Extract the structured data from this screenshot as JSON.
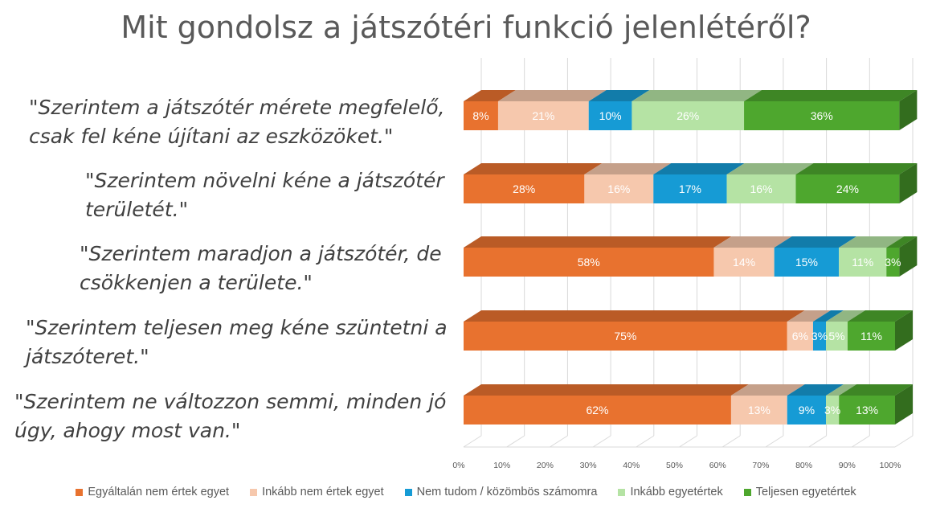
{
  "chart_data": {
    "type": "bar",
    "orientation": "horizontal",
    "stacked": true,
    "percent": true,
    "title": "Mit gondolsz a játszótéri funkció jelenlétéről?",
    "categories": [
      "\"Szerintem a játszótér mérete megfelelő, csak fel kéne újítani az eszközöket.\"",
      "\"Szerintem növelni kéne a játszótér területét.\"",
      "\"Szerintem maradjon a játszótér, de csökkenjen a területe.\"",
      "\"Szerintem teljesen meg kéne szüntetni a játszóteret.\"",
      "\"Szerintem ne változzon semmi, minden jó úgy, ahogy most van.\""
    ],
    "category_lines": [
      [
        "\"Szerintem a játszótér mérete megfelelő,",
        "csak fel kéne újítani az eszközöket.\""
      ],
      [
        "\"Szerintem növelni kéne a játszótér",
        "területét.\""
      ],
      [
        "\"Szerintem maradjon a játszótér, de",
        "csökkenjen a területe.\""
      ],
      [
        "\"Szerintem teljesen meg kéne szüntetni a",
        "játszóteret.\""
      ],
      [
        "\"Szerintem ne változzon semmi, minden jó",
        "úgy, ahogy most van.\""
      ]
    ],
    "series": [
      {
        "name": "Egyáltalán nem értek egyet",
        "color": "#E8722F",
        "text_color": "#ffffff",
        "values": [
          8,
          28,
          58,
          75,
          62
        ]
      },
      {
        "name": "Inkább nem értek egyet",
        "color": "#F6C8AD",
        "text_color": "#ffffff",
        "values": [
          21,
          16,
          14,
          6,
          13
        ]
      },
      {
        "name": "Nem tudom / közömbös számomra",
        "color": "#169BD5",
        "text_color": "#ffffff",
        "values": [
          10,
          17,
          15,
          3,
          9
        ]
      },
      {
        "name": "Inkább egyetértek",
        "color": "#B5E3A4",
        "text_color": "#ffffff",
        "values": [
          26,
          16,
          11,
          5,
          3
        ]
      },
      {
        "name": "Teljesen egyetértek",
        "color": "#4EA72E",
        "text_color": "#ffffff",
        "values": [
          36,
          24,
          3,
          11,
          13
        ]
      }
    ],
    "xlim": [
      0,
      100
    ],
    "xticks": [
      "0%",
      "10%",
      "20%",
      "30%",
      "40%",
      "50%",
      "60%",
      "70%",
      "80%",
      "90%",
      "100%"
    ],
    "grid": true,
    "legend_position": "bottom",
    "three_d": true
  }
}
